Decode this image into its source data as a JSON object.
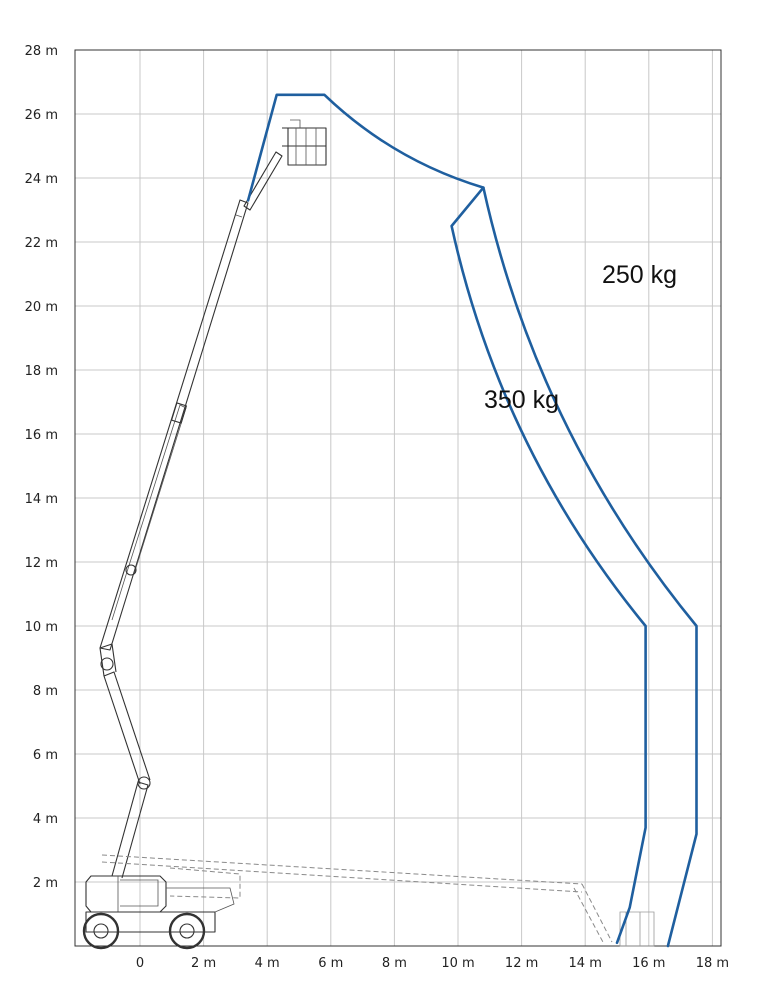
{
  "chart_data": {
    "type": "working-range diagram",
    "x_unit": "m",
    "y_unit": "m",
    "xlim": [
      -2,
      18
    ],
    "ylim": [
      0,
      28
    ],
    "x_ticks": [
      {
        "value": 0,
        "label": "0"
      },
      {
        "value": 2,
        "label": "2 m"
      },
      {
        "value": 4,
        "label": "4 m"
      },
      {
        "value": 6,
        "label": "6 m"
      },
      {
        "value": 8,
        "label": "8 m"
      },
      {
        "value": 10,
        "label": "10 m"
      },
      {
        "value": 12,
        "label": "12 m"
      },
      {
        "value": 14,
        "label": "14 m"
      },
      {
        "value": 16,
        "label": "16 m"
      },
      {
        "value": 18,
        "label": "18 m"
      }
    ],
    "y_ticks": [
      {
        "value": 2,
        "label": "2 m"
      },
      {
        "value": 4,
        "label": "4 m"
      },
      {
        "value": 6,
        "label": "6 m"
      },
      {
        "value": 8,
        "label": "8 m"
      },
      {
        "value": 10,
        "label": "10 m"
      },
      {
        "value": 12,
        "label": "12 m"
      },
      {
        "value": 14,
        "label": "14 m"
      },
      {
        "value": 16,
        "label": "16 m"
      },
      {
        "value": 18,
        "label": "18 m"
      },
      {
        "value": 20,
        "label": "20 m"
      },
      {
        "value": 22,
        "label": "22 m"
      },
      {
        "value": 24,
        "label": "24 m"
      },
      {
        "value": 26,
        "label": "26 m"
      },
      {
        "value": 28,
        "label": "28 m"
      }
    ],
    "grid": true,
    "envelope_color": "#1f5f9f",
    "envelope_250": {
      "label": "250 kg",
      "points": [
        [
          3.4,
          23.3
        ],
        [
          4.3,
          26.6
        ],
        [
          5.8,
          26.6
        ],
        [
          10.8,
          23.7
        ],
        [
          17.5,
          10.0
        ],
        [
          17.5,
          3.5
        ],
        [
          16.6,
          0.0
        ]
      ]
    },
    "envelope_350": {
      "label": "350 kg",
      "points": [
        [
          10.8,
          23.7
        ],
        [
          9.8,
          22.5
        ],
        [
          15.9,
          10.0
        ],
        [
          15.9,
          3.7
        ],
        [
          15.4,
          1.2
        ],
        [
          15.0,
          0.1
        ]
      ]
    }
  }
}
